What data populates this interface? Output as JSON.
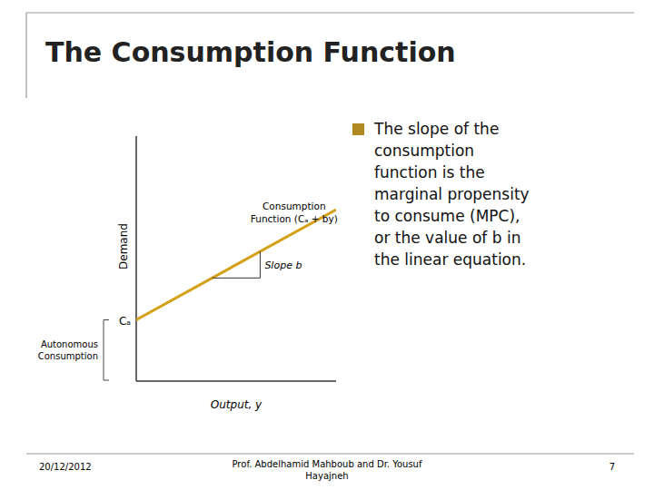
{
  "chart_data": {
    "type": "line",
    "title": "The Consumption Function",
    "x": [
      0,
      10
    ],
    "values": [
      2.5,
      7.0
    ],
    "color": "#d4a017",
    "xlim": [
      0,
      10
    ],
    "ylim": [
      0,
      10
    ],
    "xticks": [],
    "yticks": [],
    "tick_labels": false,
    "grid": false,
    "xlabel": "Output, y",
    "ylabel": "Demand",
    "annotations": [
      "Cₐ",
      "Autonomous\nConsumption",
      "Slope b",
      "Consumption",
      "Function (Cₐ + by)",
      "The slope of the\nconsumption\nfunction is the\nmarginal propensity\nto consume (MPC),\nor the value of b in\nthe linear equation.",
      "20/12/2012",
      "Prof. Abdelhamid Mahboub and Dr. Yousuf\nHayajneh",
      "7"
    ]
  }
}
